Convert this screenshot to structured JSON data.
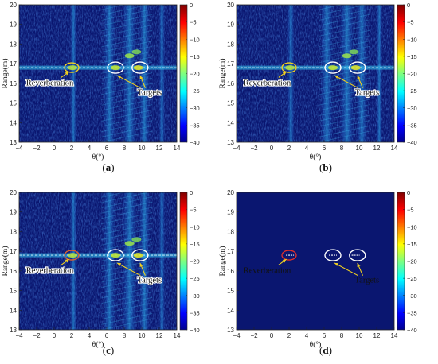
{
  "chart_data": [
    {
      "type": "heatmap",
      "panel_label": "a",
      "xlabel": "θ(°)",
      "ylabel": "Range(m)",
      "xlim": [
        -4,
        14
      ],
      "ylim": [
        13,
        20
      ],
      "x_ticks": [
        "−4",
        "−2",
        "0",
        "2",
        "4",
        "6",
        "8",
        "10",
        "12",
        "14"
      ],
      "y_ticks": [
        "13",
        "14",
        "15",
        "16",
        "17",
        "18",
        "19",
        "20"
      ],
      "colorbar": {
        "range": [
          -40,
          0
        ],
        "ticks": [
          "0",
          "−5",
          "−10",
          "−15",
          "−20",
          "−25",
          "−30",
          "−35",
          "−40"
        ]
      },
      "annotations": [
        {
          "text": "Reverberation",
          "ellipse_center": [
            2,
            16.8
          ],
          "color": "#f6d21a"
        },
        {
          "text": "Targets",
          "ellipse_centers": [
            [
              7,
              16.8
            ],
            [
              9.8,
              16.8
            ]
          ],
          "color": "#ffffff"
        }
      ]
    },
    {
      "type": "heatmap",
      "panel_label": "b",
      "xlabel": "θ(°)",
      "ylabel": "Range(m)",
      "xlim": [
        -4,
        14
      ],
      "ylim": [
        13,
        20
      ],
      "x_ticks": [
        "−4",
        "−2",
        "0",
        "2",
        "4",
        "6",
        "8",
        "10",
        "12",
        "14"
      ],
      "y_ticks": [
        "13",
        "14",
        "15",
        "16",
        "17",
        "18",
        "19",
        "20"
      ],
      "colorbar": {
        "range": [
          -40,
          0
        ],
        "ticks": [
          "0",
          "−5",
          "−10",
          "−15",
          "−20",
          "−25",
          "−30",
          "−35",
          "−40"
        ]
      },
      "annotations": [
        {
          "text": "Reverberation",
          "ellipse_center": [
            2,
            16.8
          ],
          "color": "#f6d21a"
        },
        {
          "text": "Targets",
          "ellipse_centers": [
            [
              7,
              16.8
            ],
            [
              9.8,
              16.8
            ]
          ],
          "color": "#ffffff"
        }
      ]
    },
    {
      "type": "heatmap",
      "panel_label": "c",
      "xlabel": "θ(°)",
      "ylabel": "Range(m)",
      "xlim": [
        -4,
        14
      ],
      "ylim": [
        13,
        20
      ],
      "x_ticks": [
        "−4",
        "−2",
        "0",
        "2",
        "4",
        "6",
        "8",
        "10",
        "12",
        "14"
      ],
      "y_ticks": [
        "13",
        "14",
        "15",
        "16",
        "17",
        "18",
        "19",
        "20"
      ],
      "colorbar": {
        "range": [
          -40,
          0
        ],
        "ticks": [
          "0",
          "−5",
          "−10",
          "−15",
          "−20",
          "−25",
          "−30",
          "−35",
          "−40"
        ]
      },
      "annotations": [
        {
          "text": "Reverberation",
          "ellipse_center": [
            2,
            16.8
          ],
          "color": "#e0602a"
        },
        {
          "text": "Targets",
          "ellipse_centers": [
            [
              7,
              16.8
            ],
            [
              9.8,
              16.8
            ]
          ],
          "color": "#ffffff"
        }
      ]
    },
    {
      "type": "heatmap",
      "panel_label": "d",
      "xlabel": "θ(°)",
      "ylabel": "Range(m)",
      "xlim": [
        -4,
        14
      ],
      "ylim": [
        13,
        20
      ],
      "x_ticks": [
        "−4",
        "−2",
        "0",
        "2",
        "4",
        "6",
        "8",
        "10",
        "12",
        "14"
      ],
      "y_ticks": [
        "13",
        "14",
        "15",
        "16",
        "17",
        "18",
        "19",
        "20"
      ],
      "colorbar": {
        "range": [
          -40,
          0
        ],
        "ticks": [
          "0",
          "−5",
          "−10",
          "−15",
          "−20",
          "−25",
          "−30",
          "−35",
          "−40"
        ]
      },
      "annotations": [
        {
          "text": "Reverberation",
          "ellipse_center": [
            2,
            16.8
          ],
          "color": "#e0302a"
        },
        {
          "text": "Targets",
          "ellipse_centers": [
            [
              7,
              16.8
            ],
            [
              9.8,
              16.8
            ]
          ],
          "color": "#ffffff"
        }
      ]
    }
  ],
  "colors": {
    "background_dark": "#0a1670",
    "axis": "#222222"
  }
}
